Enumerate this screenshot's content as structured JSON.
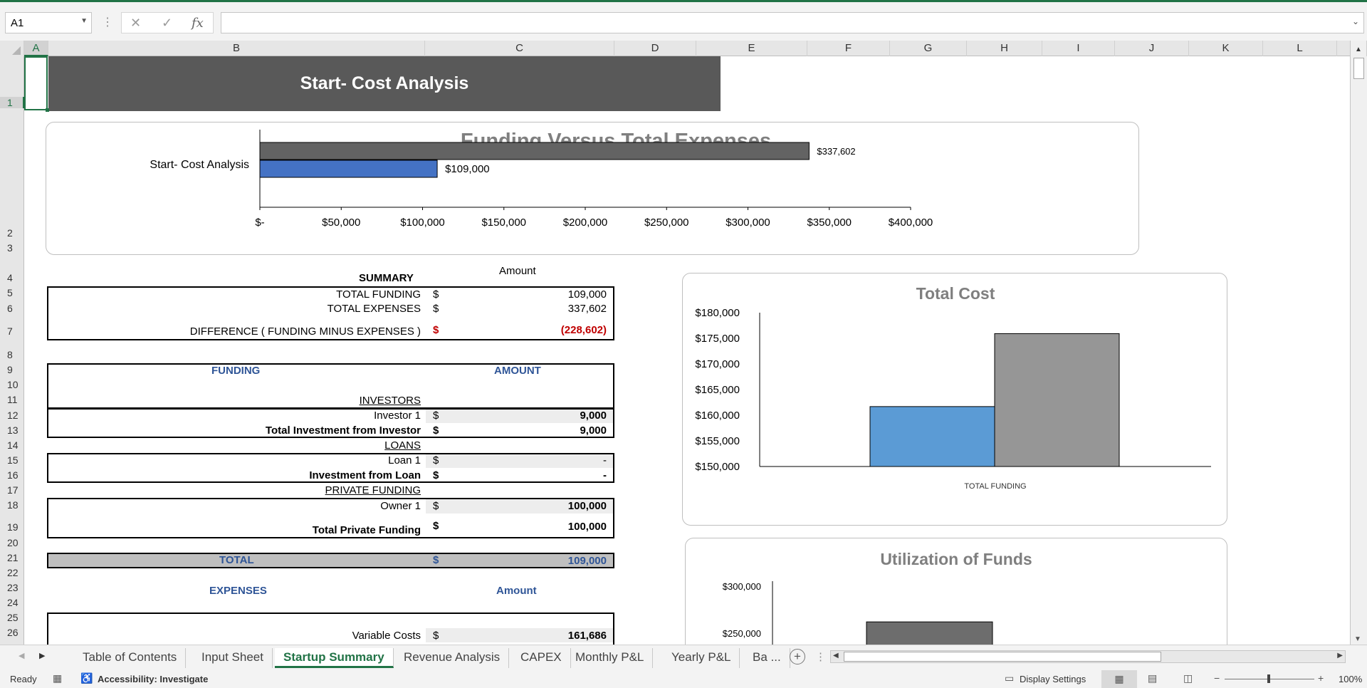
{
  "formula_bar": {
    "name_box": "A1",
    "formula": ""
  },
  "columns": [
    "A",
    "B",
    "C",
    "D",
    "E",
    "F",
    "G",
    "H",
    "I",
    "J",
    "K",
    "L"
  ],
  "rows": [
    "1",
    "2",
    "3",
    "4",
    "5",
    "6",
    "7",
    "8",
    "9",
    "10",
    "11",
    "12",
    "13",
    "14",
    "15",
    "16",
    "17",
    "18",
    "19",
    "20",
    "21",
    "22",
    "23",
    "24",
    "25",
    "26"
  ],
  "sheet": {
    "title": "Start- Cost Analysis",
    "summary": {
      "amount_header": "Amount",
      "heading": "SUMMARY",
      "total_funding_label": "TOTAL FUNDING",
      "total_funding_value": "109,000",
      "total_expenses_label": "TOTAL EXPENSES",
      "total_expenses_value": "337,602",
      "difference_label": "DIFFERENCE  ( FUNDING MINUS EXPENSES )",
      "difference_value": "(228,602)",
      "currency": "$"
    },
    "funding": {
      "heading": "FUNDING",
      "amount_heading": "AMOUNT",
      "investors_label": "INVESTORS",
      "investor1_label": "Investor 1",
      "investor1_value": "9,000",
      "total_investment_label": "Total Investment from Investor",
      "total_investment_value": "9,000",
      "loans_label": "LOANS",
      "loan1_label": "Loan 1",
      "loan1_value": "-",
      "investment_loan_label": "Investment from Loan",
      "investment_loan_value": "-",
      "private_label": "PRIVATE FUNDING",
      "owner1_label": "Owner 1",
      "owner1_value": "100,000",
      "total_private_label": "Total Private Funding",
      "total_private_value": "100,000",
      "total_label": "TOTAL",
      "total_value": "109,000"
    },
    "expenses": {
      "heading": "EXPENSES",
      "amount_heading": "Amount",
      "variable_costs_label": "Variable Costs",
      "variable_costs_value": "161,686"
    }
  },
  "chart_data": [
    {
      "type": "bar",
      "orientation": "horizontal",
      "title": "Funding Versus Total Expenses",
      "categories": [
        "Start- Cost Analysis"
      ],
      "series": [
        {
          "values": [
            337602
          ],
          "color": "#636363",
          "label": "$337,602"
        },
        {
          "values": [
            109000
          ],
          "color": "#4472c4",
          "label": "$109,000"
        }
      ],
      "xlim": [
        0,
        400000
      ],
      "x_ticks": [
        "$-",
        "$50,000",
        "$100,000",
        "$150,000",
        "$200,000",
        "$250,000",
        "$300,000",
        "$350,000",
        "$400,000"
      ],
      "x_tick_values": [
        0,
        50000,
        100000,
        150000,
        200000,
        250000,
        300000,
        350000,
        400000
      ]
    },
    {
      "type": "bar",
      "title": "Total Cost",
      "categories": [
        "TOTAL FUNDING"
      ],
      "series": [
        {
          "values": [
            161686
          ],
          "color": "#5b9bd5"
        },
        {
          "values": [
            175916
          ],
          "color": "#969696"
        }
      ],
      "ylim": [
        150000,
        180000
      ],
      "y_ticks": [
        "$150,000",
        "$155,000",
        "$160,000",
        "$165,000",
        "$170,000",
        "$175,000",
        "$180,000"
      ],
      "y_tick_values": [
        150000,
        155000,
        160000,
        165000,
        170000,
        175000,
        180000
      ]
    },
    {
      "type": "bar",
      "title": "Utilization of Funds",
      "y_ticks": [
        "$250,000",
        "$300,000"
      ],
      "y_tick_values": [
        250000,
        300000
      ],
      "series": [
        {
          "values": [
            262000
          ],
          "color": "#6d6d6d"
        }
      ]
    }
  ],
  "tabs": [
    "Table of Contents",
    "Input Sheet",
    "Startup Summary",
    "Revenue Analysis",
    "CAPEX",
    "Monthly P&L",
    "Yearly P&L",
    "Ba ..."
  ],
  "active_tab": "Startup Summary",
  "status": {
    "ready": "Ready",
    "accessibility": "Accessibility: Investigate",
    "display_settings": "Display Settings",
    "zoom": "100%"
  },
  "colors": {
    "accent": "#217346",
    "banner": "#595959",
    "blue_text": "#2f5597",
    "red_text": "#c00000"
  }
}
